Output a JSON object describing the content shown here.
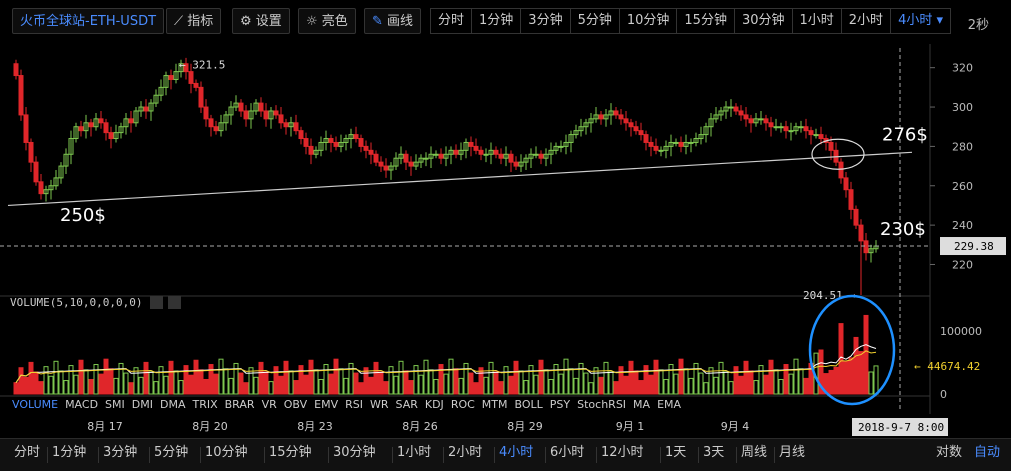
{
  "toolbar": {
    "symbol": "火币全球站-ETH-USDT",
    "indicators": "指标",
    "settings": "设置",
    "brightness": "亮色",
    "draw": "画线",
    "timeframes": [
      "分时",
      "1分钟",
      "3分钟",
      "5分钟",
      "10分钟",
      "15分钟",
      "30分钟",
      "1小时",
      "2小时",
      "4小时"
    ],
    "active_timeframe": "4小时",
    "refresh": "2秒"
  },
  "volume_label": "VOLUME(5,10,0,0,0,0)",
  "indicator_tabs": [
    "VOLUME",
    "MACD",
    "SMI",
    "DMI",
    "DMA",
    "TRIX",
    "BRAR",
    "VR",
    "OBV",
    "EMV",
    "RSI",
    "WR",
    "SAR",
    "KDJ",
    "ROC",
    "MTM",
    "BOLL",
    "PSY",
    "StochRSI",
    "MA",
    "EMA"
  ],
  "active_indicator": "VOLUME",
  "bottom_bar": {
    "periods": [
      "分时",
      "1分钟",
      "3分钟",
      "5分钟",
      "10分钟",
      "15分钟",
      "30分钟",
      "1小时",
      "2小时",
      "4小时",
      "6小时",
      "12小时",
      "1天",
      "3天",
      "周线",
      "月线"
    ],
    "active_period": "4小时",
    "log_scale": "对数",
    "auto": "自动"
  },
  "annotations": {
    "high": "321.5",
    "low": "204.51",
    "current_price": "229.38",
    "current_volume": "44674.42",
    "label_250": "250$",
    "label_276": "276$",
    "label_230": "230$",
    "crosshair_time": "2018-9-7 8:00"
  },
  "chart_data": [
    {
      "type": "candlestick",
      "title": "",
      "xlabel": "",
      "ylabel": "",
      "x_ticks": [
        "8月 17",
        "8月 20",
        "8月 23",
        "8月 26",
        "8月 29",
        "9月 1",
        "9月 4"
      ],
      "y_ticks": [
        220,
        240,
        260,
        280,
        300,
        320
      ],
      "ylim": [
        205,
        330
      ],
      "grid": false,
      "colors": {
        "up": "#7ec850",
        "down": "#e0262a",
        "ma5": "#ffffff",
        "ma10": "#f2d12e",
        "trendline": "#cccccc",
        "circle": "#1e90ff"
      },
      "closes": [
        316,
        296,
        282,
        272,
        262,
        256,
        258,
        260,
        264,
        270,
        276,
        284,
        290,
        288,
        292,
        290,
        294,
        292,
        287,
        284,
        287,
        290,
        294,
        292,
        298,
        300,
        298,
        302,
        306,
        310,
        316,
        314,
        318,
        322,
        318,
        312,
        310,
        300,
        294,
        290,
        288,
        292,
        296,
        300,
        302,
        298,
        294,
        298,
        302,
        298,
        294,
        298,
        296,
        292,
        290,
        292,
        288,
        284,
        280,
        276,
        278,
        282,
        284,
        282,
        280,
        282,
        284,
        286,
        284,
        280,
        278,
        276,
        272,
        270,
        268,
        270,
        274,
        276,
        272,
        270,
        272,
        274,
        274,
        276,
        276,
        274,
        276,
        278,
        276,
        278,
        282,
        280,
        278,
        276,
        276,
        278,
        276,
        274,
        276,
        272,
        270,
        272,
        274,
        276,
        276,
        274,
        276,
        278,
        280,
        280,
        282,
        286,
        288,
        290,
        292,
        294,
        296,
        294,
        296,
        298,
        296,
        294,
        292,
        290,
        288,
        286,
        282,
        280,
        278,
        278,
        280,
        282,
        282,
        280,
        282,
        282,
        284,
        286,
        290,
        294,
        296,
        298,
        300,
        300,
        298,
        296,
        294,
        292,
        294,
        294,
        292,
        290,
        290,
        290,
        288,
        288,
        290,
        290,
        288,
        286,
        286,
        284,
        282,
        278,
        272,
        264,
        258,
        248,
        240,
        232,
        226,
        228,
        229.38
      ]
    },
    {
      "type": "bar",
      "title": "VOLUME(5,10,0,0,0,0)",
      "series_name": "volume",
      "y_ticks": [
        0,
        50000,
        100000
      ],
      "y_tick_labels": [
        "0",
        "",
        "100000"
      ],
      "ylim": [
        0,
        140000
      ],
      "last_value": 44674.42,
      "legend": "none"
    }
  ]
}
